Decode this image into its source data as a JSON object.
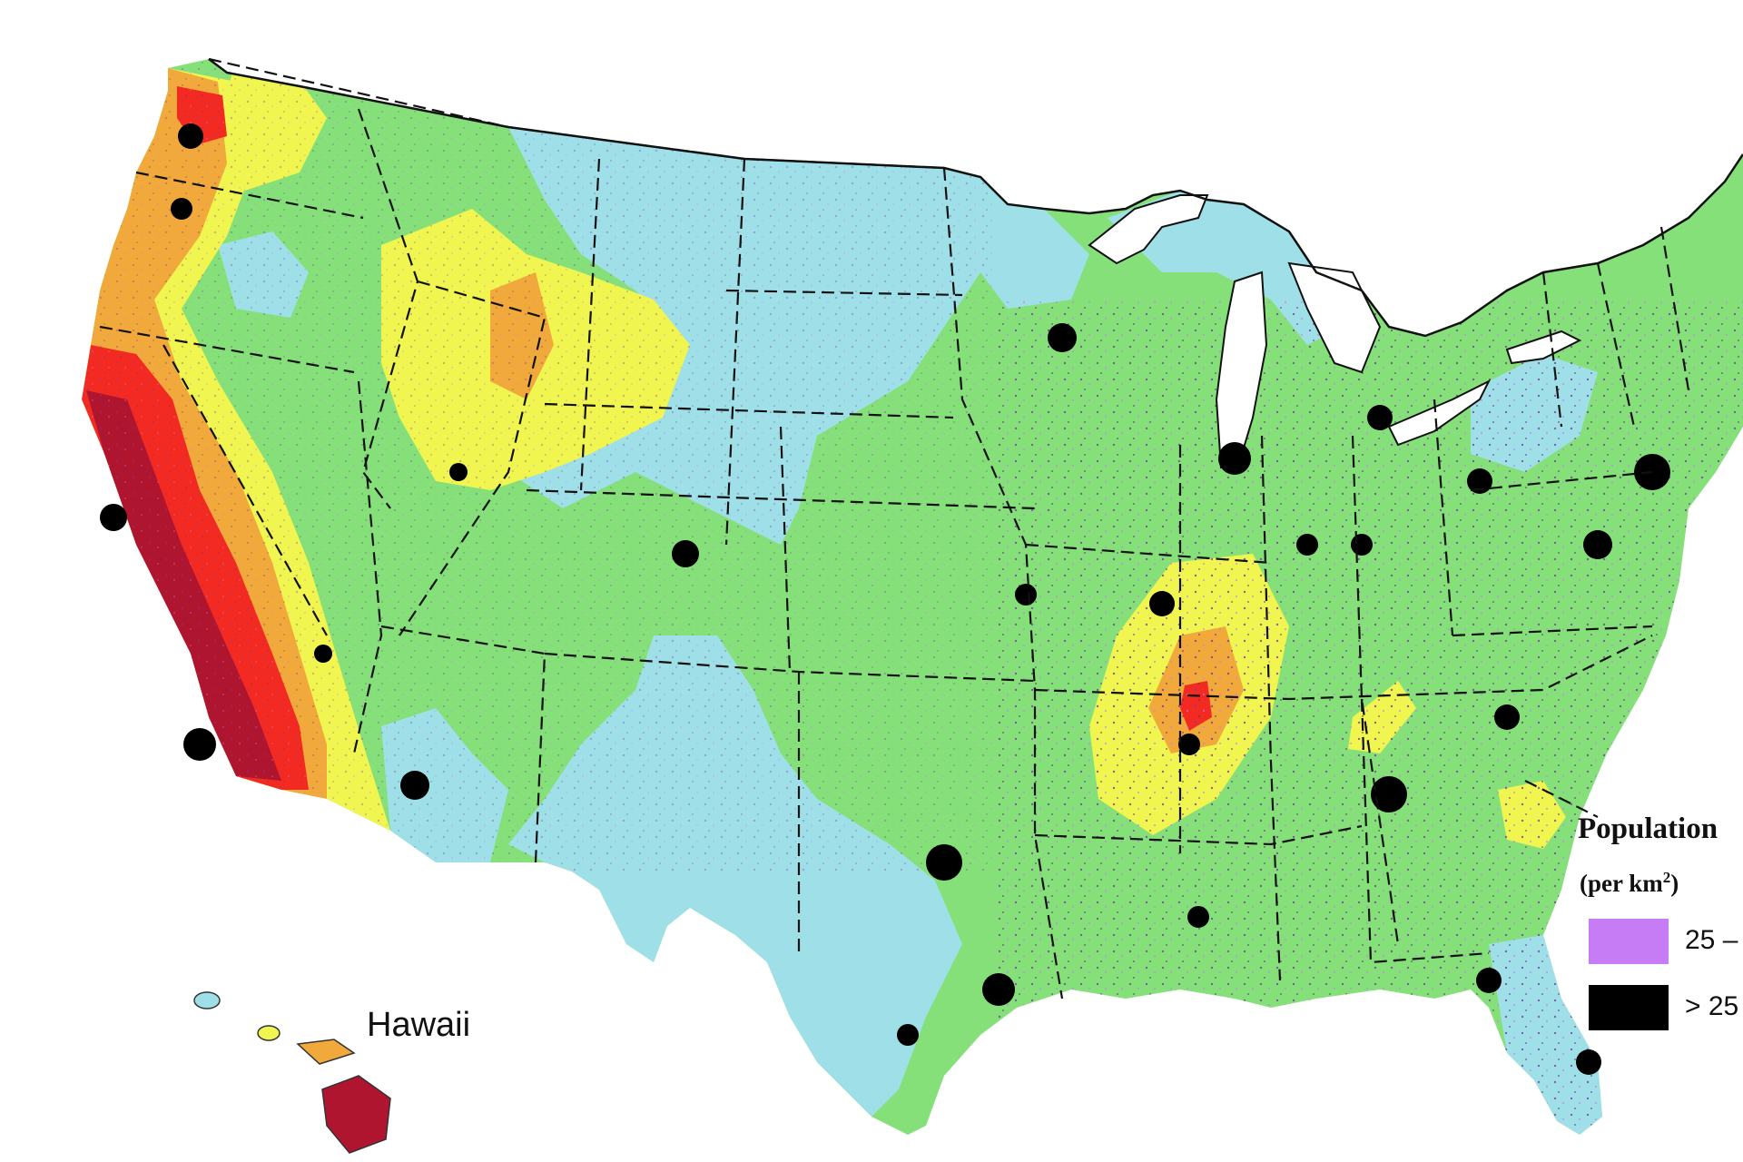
{
  "map": {
    "inset_label": "Hawaii",
    "colors": {
      "ocean": "#ffffff",
      "lowest_hazard": "#9fe0e8",
      "low_hazard": "#86e07a",
      "moderate_hazard": "#f0f550",
      "high_hazard": "#f0a93a",
      "very_high_hazard": "#f22a22",
      "highest_hazard": "#b01530",
      "population_25": "#c67cf5",
      "population_high": "#000000",
      "state_border": "#111111"
    }
  },
  "legend": {
    "title": "Population",
    "unit": "(per km",
    "unit_exponent": "2",
    "unit_close": ")",
    "items": [
      {
        "label": "25 –",
        "color": "#c67cf5"
      },
      {
        "label": "> 25",
        "color": "#000000"
      }
    ]
  }
}
